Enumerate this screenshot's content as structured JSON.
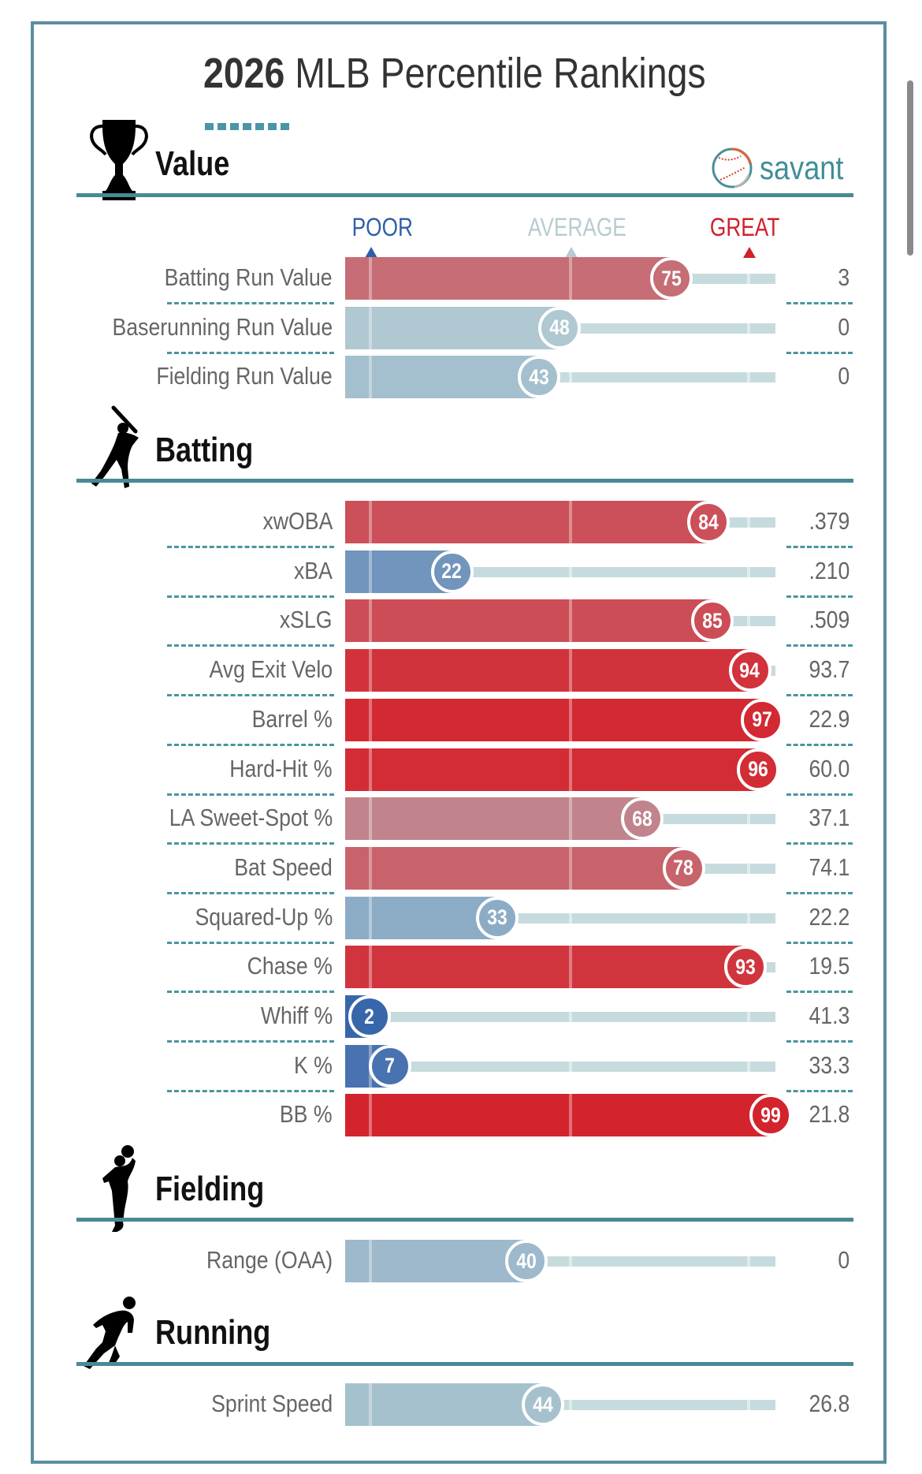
{
  "title": {
    "year": "2026",
    "rest": " MLB Percentile Rankings"
  },
  "brand": {
    "name": "savant",
    "icon": "baseball-icon"
  },
  "scale_labels": {
    "poor": "POOR",
    "average": "AVERAGE",
    "great": "GREAT"
  },
  "colors": {
    "frame": "#5a8fa0",
    "rule": "#478a94",
    "poor": "#2f5fa8",
    "average": "#b7ccd0",
    "great": "#d0202a",
    "track": "#c6dbdd",
    "brand": "#3f8e98"
  },
  "chart_data": {
    "type": "bar",
    "title": "2026 MLB Percentile Rankings",
    "xlabel": "Percentile",
    "xlim": [
      0,
      100
    ],
    "scale": [
      "POOR",
      "AVERAGE",
      "GREAT"
    ],
    "sections": [
      {
        "name": "Value",
        "icon": "trophy-icon",
        "rows": [
          {
            "label": "Batting Run Value",
            "percentile": 75,
            "value": "3"
          },
          {
            "label": "Baserunning Run Value",
            "percentile": 48,
            "value": "0"
          },
          {
            "label": "Fielding Run Value",
            "percentile": 43,
            "value": "0"
          }
        ]
      },
      {
        "name": "Batting",
        "icon": "batter-icon",
        "rows": [
          {
            "label": "xwOBA",
            "percentile": 84,
            "value": ".379"
          },
          {
            "label": "xBA",
            "percentile": 22,
            "value": ".210"
          },
          {
            "label": "xSLG",
            "percentile": 85,
            "value": ".509"
          },
          {
            "label": "Avg Exit Velo",
            "percentile": 94,
            "value": "93.7"
          },
          {
            "label": "Barrel %",
            "percentile": 97,
            "value": "22.9"
          },
          {
            "label": "Hard-Hit %",
            "percentile": 96,
            "value": "60.0"
          },
          {
            "label": "LA Sweet-Spot %",
            "percentile": 68,
            "value": "37.1"
          },
          {
            "label": "Bat Speed",
            "percentile": 78,
            "value": "74.1"
          },
          {
            "label": "Squared-Up %",
            "percentile": 33,
            "value": "22.2"
          },
          {
            "label": "Chase %",
            "percentile": 93,
            "value": "19.5"
          },
          {
            "label": "Whiff %",
            "percentile": 2,
            "value": "41.3"
          },
          {
            "label": "K %",
            "percentile": 7,
            "value": "33.3"
          },
          {
            "label": "BB %",
            "percentile": 99,
            "value": "21.8"
          }
        ]
      },
      {
        "name": "Fielding",
        "icon": "fielder-icon",
        "rows": [
          {
            "label": "Range (OAA)",
            "percentile": 40,
            "value": "0"
          }
        ]
      },
      {
        "name": "Running",
        "icon": "runner-icon",
        "rows": [
          {
            "label": "Sprint Speed",
            "percentile": 44,
            "value": "26.8"
          }
        ]
      }
    ]
  }
}
